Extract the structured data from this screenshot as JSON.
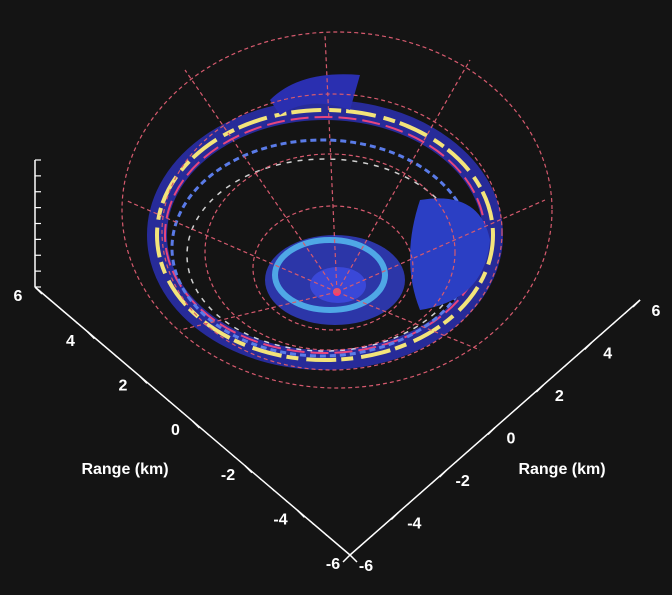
{
  "chart_data": {
    "type": "radar-3d",
    "xlabel": "Range (km)",
    "ylabel": "Range (km)",
    "xlim": [
      -6,
      6
    ],
    "xticks": [
      -6,
      -4,
      -2,
      0,
      2,
      4,
      6
    ],
    "ylim": [
      -6,
      6
    ],
    "yticks": [
      -6,
      -4,
      -2,
      0,
      2,
      4,
      6
    ]
  }
}
